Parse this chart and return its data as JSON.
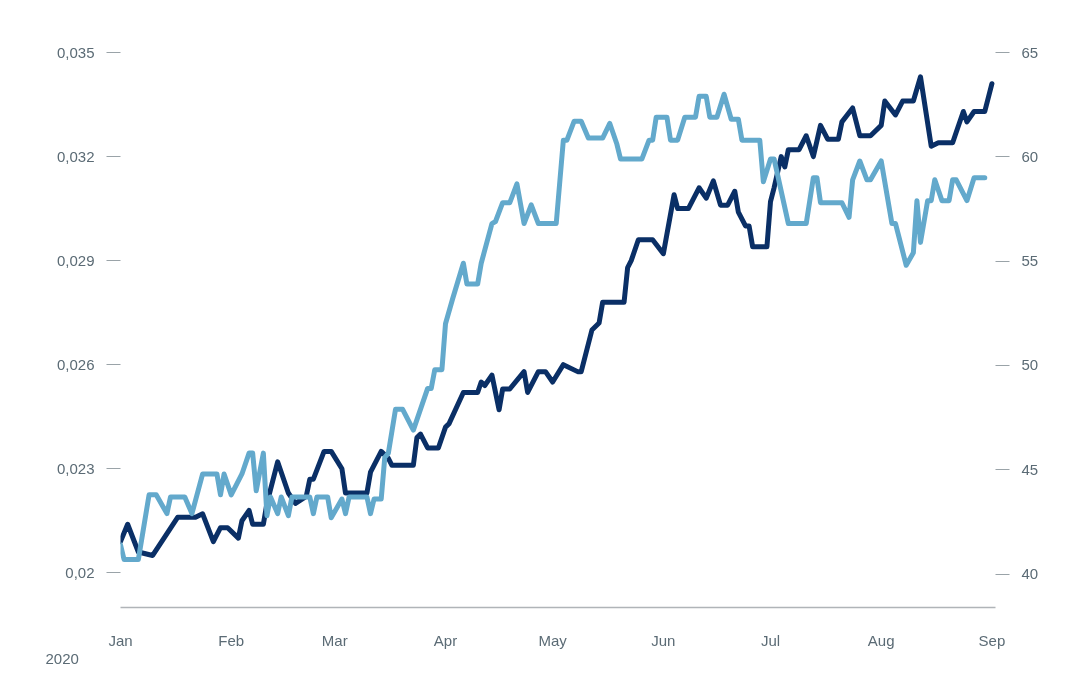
{
  "chart_data": {
    "type": "line",
    "xlabel": "2020",
    "xlim": [
      "2020-01-01",
      "2020-09-02"
    ],
    "xticks": [
      {
        "value": "2020-01-01",
        "label": "Jan"
      },
      {
        "value": "2020-02-01",
        "label": "Feb"
      },
      {
        "value": "2020-03-01",
        "label": "Mar"
      },
      {
        "value": "2020-04-01",
        "label": "Apr"
      },
      {
        "value": "2020-05-01",
        "label": "May"
      },
      {
        "value": "2020-06-01",
        "label": "Jun"
      },
      {
        "value": "2020-07-01",
        "label": "Jul"
      },
      {
        "value": "2020-08-01",
        "label": "Aug"
      },
      {
        "value": "2020-09-01",
        "label": "Sep"
      }
    ],
    "ylim": [
      0.019,
      0.035
    ],
    "yticks": [
      {
        "value": 0.02,
        "label": "0,02"
      },
      {
        "value": 0.023,
        "label": "0,023"
      },
      {
        "value": 0.026,
        "label": "0,026"
      },
      {
        "value": 0.029,
        "label": "0,029"
      },
      {
        "value": 0.032,
        "label": "0,032"
      },
      {
        "value": 0.035,
        "label": "0,035"
      }
    ],
    "y2lim": [
      38.4,
      65
    ],
    "y2ticks": [
      40,
      45,
      50,
      55,
      60,
      65
    ],
    "grid": false,
    "marker": "none",
    "line_style": "solid",
    "series": [
      {
        "color": "#0a2f66",
        "axis": "y",
        "x": [
          "2020-01-01",
          "2020-01-03",
          "2020-01-06",
          "2020-01-10",
          "2020-01-17",
          "2020-01-22",
          "2020-01-24",
          "2020-01-27",
          "2020-01-29",
          "2020-01-31",
          "2020-02-03",
          "2020-02-04",
          "2020-02-06",
          "2020-02-07",
          "2020-02-10",
          "2020-02-11",
          "2020-02-14",
          "2020-02-17",
          "2020-02-19",
          "2020-02-22",
          "2020-02-23",
          "2020-02-24",
          "2020-02-27",
          "2020-02-29",
          "2020-03-03",
          "2020-03-04",
          "2020-03-10",
          "2020-03-11",
          "2020-03-14",
          "2020-03-16",
          "2020-03-17",
          "2020-03-23",
          "2020-03-24",
          "2020-03-25",
          "2020-03-27",
          "2020-03-30",
          "2020-04-01",
          "2020-04-02",
          "2020-04-06",
          "2020-04-10",
          "2020-04-11",
          "2020-04-12",
          "2020-04-14",
          "2020-04-16",
          "2020-04-17",
          "2020-04-19",
          "2020-04-23",
          "2020-04-24",
          "2020-04-27",
          "2020-04-29",
          "2020-05-01",
          "2020-05-04",
          "2020-05-08",
          "2020-05-09",
          "2020-05-12",
          "2020-05-14",
          "2020-05-15",
          "2020-05-21",
          "2020-05-22",
          "2020-05-23",
          "2020-05-25",
          "2020-05-29",
          "2020-06-01",
          "2020-06-04",
          "2020-06-05",
          "2020-06-08",
          "2020-06-11",
          "2020-06-13",
          "2020-06-15",
          "2020-06-17",
          "2020-06-19",
          "2020-06-21",
          "2020-06-22",
          "2020-06-24",
          "2020-06-25",
          "2020-06-26",
          "2020-06-30",
          "2020-07-01",
          "2020-07-02",
          "2020-07-04",
          "2020-07-05",
          "2020-07-06",
          "2020-07-09",
          "2020-07-11",
          "2020-07-13",
          "2020-07-15",
          "2020-07-17",
          "2020-07-20",
          "2020-07-21",
          "2020-07-24",
          "2020-07-26",
          "2020-07-29",
          "2020-08-01",
          "2020-08-02",
          "2020-08-05",
          "2020-08-07",
          "2020-08-10",
          "2020-08-12",
          "2020-08-15",
          "2020-08-17",
          "2020-08-21",
          "2020-08-22",
          "2020-08-24",
          "2020-08-25",
          "2020-08-27",
          "2020-08-30",
          "2020-09-01"
        ],
        "values": [
          0.0209,
          0.0214,
          0.0206,
          0.0205,
          0.0216,
          0.0216,
          0.0217,
          0.0209,
          0.0213,
          0.0213,
          0.021,
          0.0215,
          0.0218,
          0.0214,
          0.0214,
          0.022,
          0.0232,
          0.0223,
          0.022,
          0.0222,
          0.0227,
          0.0227,
          0.0235,
          0.0235,
          0.023,
          0.0223,
          0.0223,
          0.0229,
          0.0235,
          0.0233,
          0.0231,
          0.0231,
          0.0239,
          0.024,
          0.0236,
          0.0236,
          0.0242,
          0.0243,
          0.0252,
          0.0252,
          0.0255,
          0.0254,
          0.0257,
          0.0247,
          0.0253,
          0.0253,
          0.0258,
          0.0252,
          0.0258,
          0.0258,
          0.0255,
          0.026,
          0.0258,
          0.0258,
          0.027,
          0.0272,
          0.0278,
          0.0278,
          0.0288,
          0.029,
          0.0296,
          0.0296,
          0.0292,
          0.0309,
          0.0305,
          0.0305,
          0.0311,
          0.0308,
          0.0313,
          0.0306,
          0.0306,
          0.031,
          0.0304,
          0.03,
          0.03,
          0.0294,
          0.0294,
          0.0307,
          0.0311,
          0.032,
          0.0317,
          0.0322,
          0.0322,
          0.0326,
          0.032,
          0.0329,
          0.0325,
          0.0325,
          0.033,
          0.0334,
          0.0326,
          0.0326,
          0.0329,
          0.0336,
          0.0332,
          0.0336,
          0.0336,
          0.0343,
          0.0323,
          0.0324,
          0.0324,
          0.0327,
          0.0333,
          0.033,
          0.0333,
          0.0333,
          0.0341
        ]
      },
      {
        "color": "#63a9cc",
        "axis": "y2",
        "x": [
          "2020-01-01",
          "2020-01-02",
          "2020-01-06",
          "2020-01-09",
          "2020-01-11",
          "2020-01-14",
          "2020-01-15",
          "2020-01-19",
          "2020-01-21",
          "2020-01-24",
          "2020-01-28",
          "2020-01-29",
          "2020-01-30",
          "2020-02-01",
          "2020-02-04",
          "2020-02-06",
          "2020-02-07",
          "2020-02-08",
          "2020-02-10",
          "2020-02-11",
          "2020-02-12",
          "2020-02-14",
          "2020-02-15",
          "2020-02-17",
          "2020-02-18",
          "2020-02-23",
          "2020-02-24",
          "2020-02-25",
          "2020-02-28",
          "2020-02-29",
          "2020-03-03",
          "2020-03-04",
          "2020-03-05",
          "2020-03-10",
          "2020-03-11",
          "2020-03-12",
          "2020-03-14",
          "2020-03-15",
          "2020-03-16",
          "2020-03-18",
          "2020-03-20",
          "2020-03-23",
          "2020-03-27",
          "2020-03-28",
          "2020-03-29",
          "2020-03-31",
          "2020-04-01",
          "2020-04-03",
          "2020-04-06",
          "2020-04-07",
          "2020-04-10",
          "2020-04-11",
          "2020-04-14",
          "2020-04-15",
          "2020-04-17",
          "2020-04-19",
          "2020-04-21",
          "2020-04-23",
          "2020-04-25",
          "2020-04-27",
          "2020-05-02",
          "2020-05-04",
          "2020-05-05",
          "2020-05-07",
          "2020-05-09",
          "2020-05-11",
          "2020-05-15",
          "2020-05-17",
          "2020-05-19",
          "2020-05-20",
          "2020-05-26",
          "2020-05-28",
          "2020-05-29",
          "2020-05-30",
          "2020-06-02",
          "2020-06-03",
          "2020-06-05",
          "2020-06-07",
          "2020-06-10",
          "2020-06-11",
          "2020-06-13",
          "2020-06-14",
          "2020-06-16",
          "2020-06-18",
          "2020-06-20",
          "2020-06-22",
          "2020-06-23",
          "2020-06-28",
          "2020-06-29",
          "2020-07-01",
          "2020-07-02",
          "2020-07-06",
          "2020-07-11",
          "2020-07-13",
          "2020-07-14",
          "2020-07-15",
          "2020-07-21",
          "2020-07-23",
          "2020-07-24",
          "2020-07-26",
          "2020-07-28",
          "2020-07-29",
          "2020-08-01",
          "2020-08-04",
          "2020-08-05",
          "2020-08-08",
          "2020-08-10",
          "2020-08-11",
          "2020-08-12",
          "2020-08-14",
          "2020-08-15",
          "2020-08-16",
          "2020-08-18",
          "2020-08-20",
          "2020-08-21",
          "2020-08-22",
          "2020-08-25",
          "2020-08-27",
          "2020-08-30"
        ],
        "values": [
          41.4,
          40.7,
          40.7,
          43.8,
          43.8,
          42.9,
          43.7,
          43.7,
          42.9,
          44.8,
          44.8,
          43.8,
          44.8,
          43.8,
          44.8,
          45.8,
          45.8,
          44.0,
          45.8,
          42.8,
          43.7,
          42.9,
          43.7,
          42.8,
          43.7,
          43.7,
          42.9,
          43.7,
          43.7,
          42.7,
          43.6,
          42.9,
          43.7,
          43.7,
          42.9,
          43.6,
          43.6,
          45.6,
          45.8,
          47.9,
          47.9,
          46.9,
          48.9,
          48.9,
          49.8,
          49.8,
          52.0,
          53.2,
          54.9,
          53.9,
          53.9,
          54.9,
          56.8,
          56.9,
          57.8,
          57.8,
          58.7,
          56.8,
          57.7,
          56.8,
          56.8,
          60.8,
          60.8,
          61.7,
          61.7,
          60.9,
          60.9,
          61.6,
          60.6,
          59.9,
          59.9,
          60.8,
          60.8,
          61.9,
          61.9,
          60.8,
          60.8,
          61.9,
          61.9,
          62.9,
          62.9,
          61.9,
          61.9,
          63.0,
          61.8,
          61.8,
          60.8,
          60.8,
          58.8,
          59.9,
          59.9,
          56.8,
          56.8,
          59.0,
          59.0,
          57.8,
          57.8,
          57.1,
          58.9,
          59.8,
          58.9,
          58.9,
          59.8,
          56.8,
          56.8,
          54.8,
          55.4,
          57.9,
          55.9,
          57.9,
          57.9,
          58.9,
          57.9,
          57.9,
          58.9,
          58.9,
          57.9,
          59.0,
          59.0
        ]
      }
    ]
  }
}
